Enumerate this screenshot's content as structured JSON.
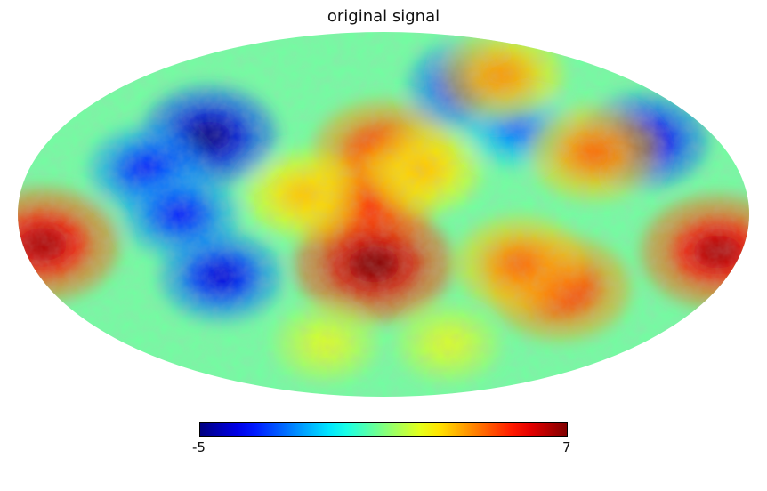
{
  "chart_data": {
    "type": "heatmap",
    "projection": "mollweide",
    "title": "original signal",
    "colormap": "jet",
    "colorbar": {
      "orientation": "horizontal",
      "placement": "bottom",
      "min": -5,
      "max": 7,
      "min_label": "-5",
      "max_label": "7"
    },
    "features": [
      {
        "lon": 0,
        "lat": 25,
        "value": 5
      },
      {
        "lon": -10,
        "lat": 5,
        "value": 5
      },
      {
        "lon": -5,
        "lat": -20,
        "value": 6.5
      },
      {
        "lon": 20,
        "lat": 18,
        "value": 3
      },
      {
        "lon": -40,
        "lat": 8,
        "value": 3
      },
      {
        "lon": -95,
        "lat": 32,
        "value": -4.5
      },
      {
        "lon": -120,
        "lat": 18,
        "value": -3
      },
      {
        "lon": -100,
        "lat": 0,
        "value": -3
      },
      {
        "lon": -85,
        "lat": -25,
        "value": -3.5
      },
      {
        "lon": 60,
        "lat": 55,
        "value": -3.5
      },
      {
        "lon": 75,
        "lat": 35,
        "value": -2
      },
      {
        "lon": 140,
        "lat": 30,
        "value": -4
      },
      {
        "lon": 110,
        "lat": 25,
        "value": 4
      },
      {
        "lon": 90,
        "lat": 60,
        "value": 3.5
      },
      {
        "lon": -170,
        "lat": -12,
        "value": 6
      },
      {
        "lon": 168,
        "lat": -15,
        "value": 6
      },
      {
        "lon": 95,
        "lat": -30,
        "value": 5
      },
      {
        "lon": 70,
        "lat": -20,
        "value": 4
      },
      {
        "lon": 45,
        "lat": -55,
        "value": 2
      },
      {
        "lon": -40,
        "lat": -55,
        "value": 2
      }
    ]
  },
  "colors": {
    "background": "#ffffff",
    "map_base": "#70ffa0"
  }
}
